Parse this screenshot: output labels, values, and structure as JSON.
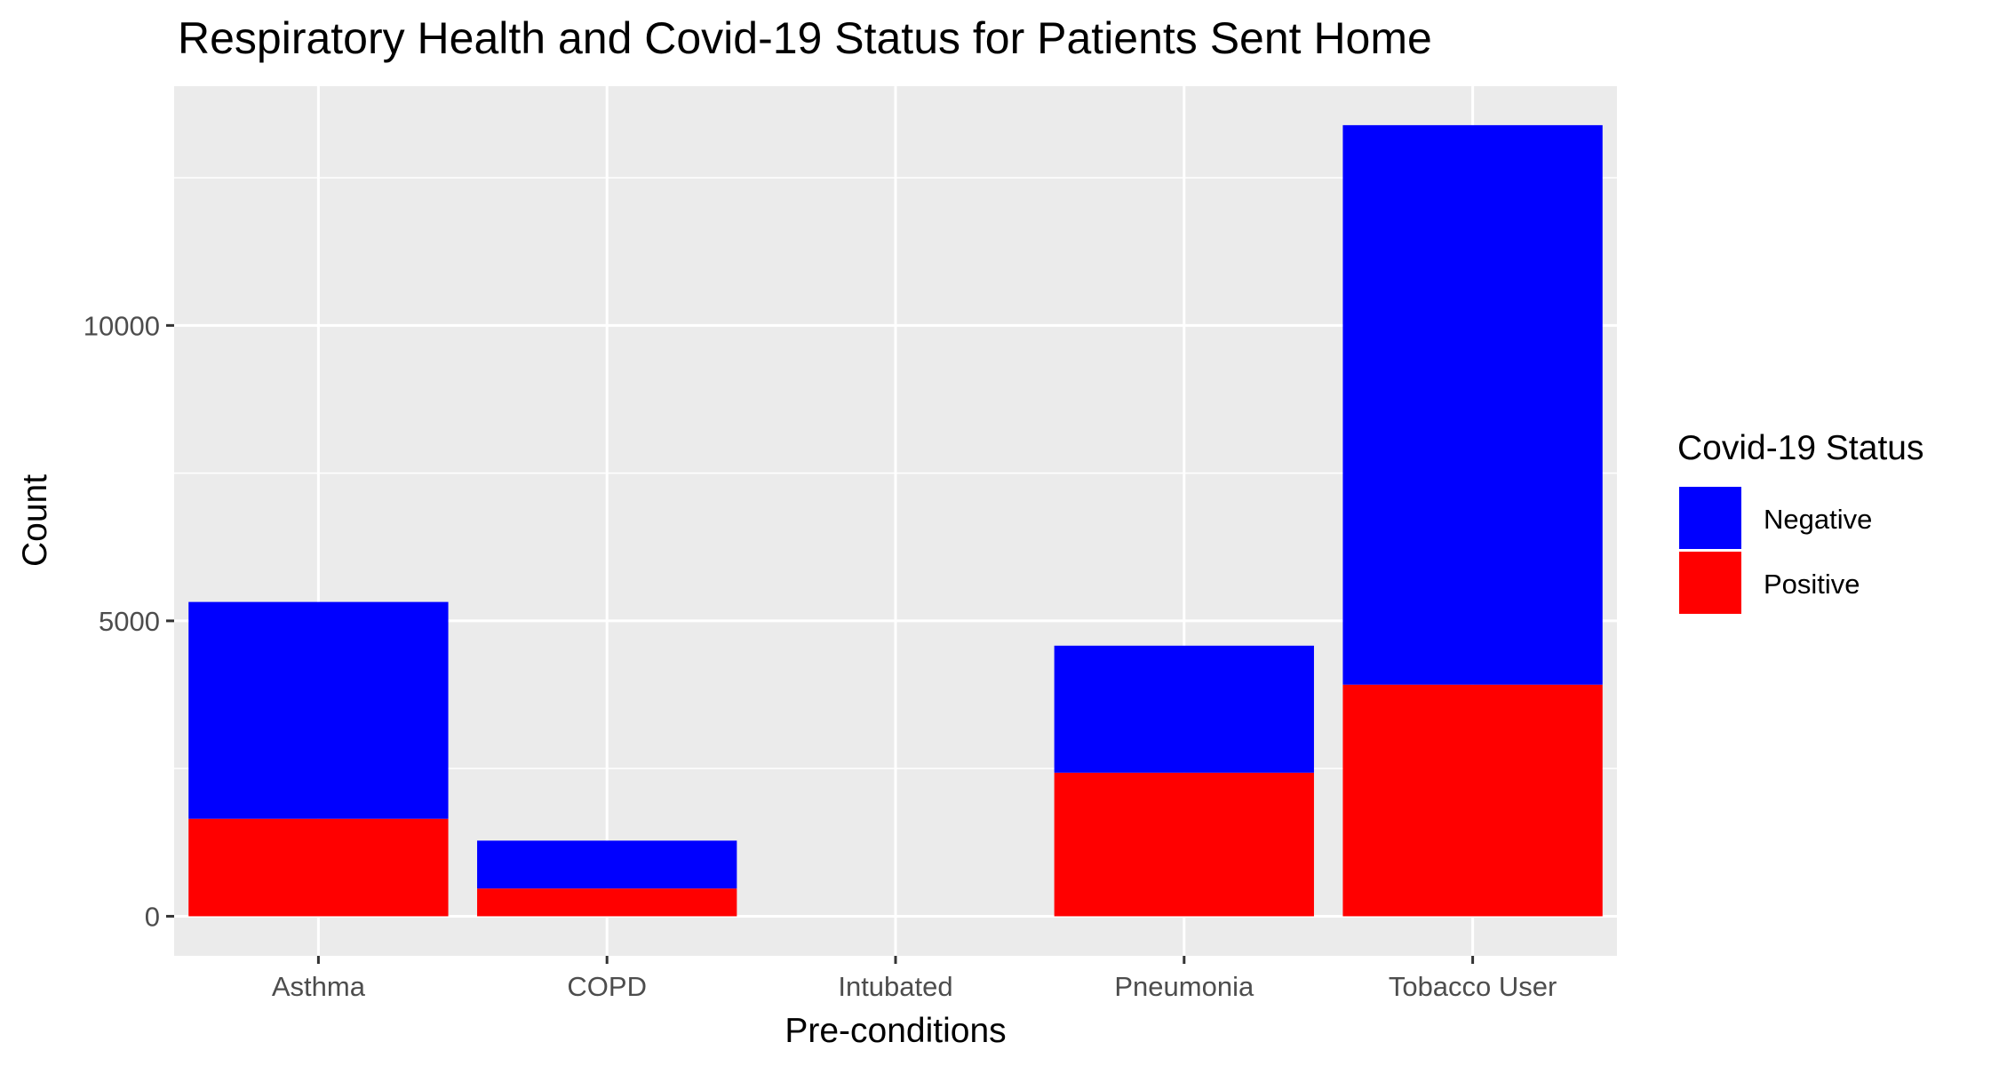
{
  "chart_data": {
    "type": "bar",
    "stacked": true,
    "title": "Respiratory Health and Covid-19 Status for Patients Sent Home",
    "xlabel": "Pre-conditions",
    "ylabel": "Count",
    "categories": [
      "Asthma",
      "COPD",
      "Intubated",
      "Pneumonia",
      "Tobacco User"
    ],
    "series": [
      {
        "name": "Positive",
        "color": "#ff0000",
        "values": [
          1650,
          470,
          0,
          2430,
          3920
        ]
      },
      {
        "name": "Negative",
        "color": "#0000ff",
        "values": [
          3670,
          810,
          0,
          2150,
          9470
        ]
      }
    ],
    "ylim": [
      -670,
      14050
    ],
    "yticks": [
      0,
      5000,
      10000
    ],
    "ytick_labels": [
      "0",
      "5000",
      "10000"
    ],
    "grid": true,
    "panel_background": "#ebebeb",
    "grid_color": "#ffffff",
    "legend": {
      "title": "Covid-19 Status",
      "position": "right",
      "entries": [
        {
          "label": "Negative",
          "color": "#0000ff"
        },
        {
          "label": "Positive",
          "color": "#ff0000"
        }
      ]
    }
  }
}
